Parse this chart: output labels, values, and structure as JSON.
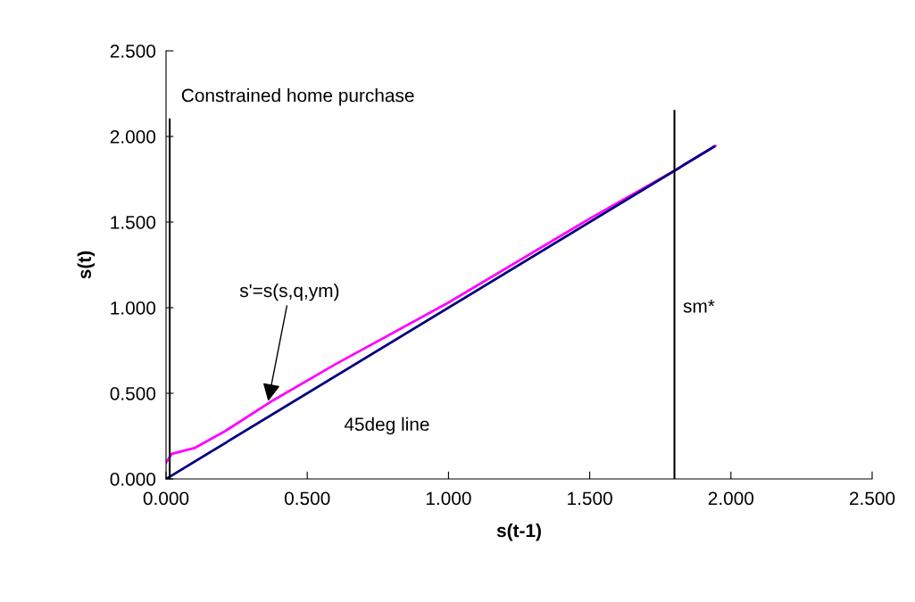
{
  "chart_data": {
    "type": "line",
    "xlabel": "s(t-1)",
    "ylabel": "s(t)",
    "xlim": [
      0,
      2.5
    ],
    "ylim": [
      0,
      2.5
    ],
    "xticks": [
      {
        "value": 0,
        "label": "0.000"
      },
      {
        "value": 0.5,
        "label": "0.500"
      },
      {
        "value": 1,
        "label": "1.000"
      },
      {
        "value": 1.5,
        "label": "1.500"
      },
      {
        "value": 2,
        "label": "2.000"
      },
      {
        "value": 2.5,
        "label": "2.500"
      }
    ],
    "yticks": [
      {
        "value": 0,
        "label": "0.000"
      },
      {
        "value": 0.5,
        "label": "0.500"
      },
      {
        "value": 1,
        "label": "1.000"
      },
      {
        "value": 1.5,
        "label": "1.500"
      },
      {
        "value": 2,
        "label": "2.000"
      },
      {
        "value": 2.5,
        "label": "2.500"
      }
    ],
    "grid": false,
    "legend": false,
    "marker": "none",
    "line_style": "solid",
    "series": [
      {
        "color": "#ff00ff",
        "x": [
          0,
          0.02,
          0.1,
          0.21,
          0.38,
          0.6,
          1.0,
          1.5,
          1.8,
          1.945
        ],
        "values": [
          0.094,
          0.146,
          0.18,
          0.28,
          0.46,
          0.67,
          1.03,
          1.52,
          1.8,
          1.945
        ]
      },
      {
        "color": "#000080",
        "x": [
          0,
          1.94
        ],
        "values": [
          0,
          1.94
        ]
      }
    ],
    "ref_lines": [
      {
        "axis": "x",
        "value": 0.013,
        "label": "Constrained home purchase",
        "color": "#000000"
      },
      {
        "axis": "x",
        "value": 1.8,
        "label": "sm*",
        "color": "#000000"
      }
    ],
    "annotations": [
      {
        "text": "s'=s(s,q,ym)",
        "x": 0.36,
        "y": 0.44
      },
      "45deg line"
    ]
  }
}
